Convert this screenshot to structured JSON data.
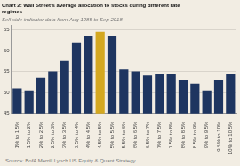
{
  "chart_data": {
    "type": "bar",
    "title": "Chart 2: Wall Street's average allocation to stocks during different rate\nregimes",
    "subtitle": "Sell-side indicator data from Aug 1985 to Sep 2018",
    "annotations": [
      "Source: BofA Merrill Lynch US Equity & Quant Strategy"
    ],
    "categories": [
      "1% to 1.5%",
      "1.5% to 2%",
      "2% to 2.5%",
      "2.5% to 3%",
      "3% to 3.5%",
      "3.5% to 4%",
      "4% to 4.5%",
      "4.5% to 5%",
      "5% to 5.5%",
      "5.5% to 6%",
      "6% to 6.5%",
      "6.5% to 7%",
      "7% to 7.5%",
      "7.5% to 8%",
      "8% to 8.5%",
      "8.5% to 9%",
      "9% to 9.5%",
      "9.5% to 10%",
      "10% to 10.5%"
    ],
    "values": [
      51.0,
      50.5,
      53.5,
      55.0,
      57.5,
      62.0,
      63.5,
      64.5,
      63.5,
      55.5,
      55.0,
      54.0,
      54.5,
      54.5,
      53.0,
      52.0,
      50.5,
      53.0,
      54.5
    ],
    "colors": [
      "#1e3560",
      "#1e3560",
      "#1e3560",
      "#1e3560",
      "#1e3560",
      "#1e3560",
      "#1e3560",
      "#d4a820",
      "#1e3560",
      "#1e3560",
      "#1e3560",
      "#1e3560",
      "#1e3560",
      "#1e3560",
      "#1e3560",
      "#1e3560",
      "#1e3560",
      "#1e3560",
      "#1e3560"
    ],
    "ylim": [
      45,
      66
    ],
    "yticks": [
      45,
      50,
      55,
      60,
      65
    ],
    "grid": true
  }
}
